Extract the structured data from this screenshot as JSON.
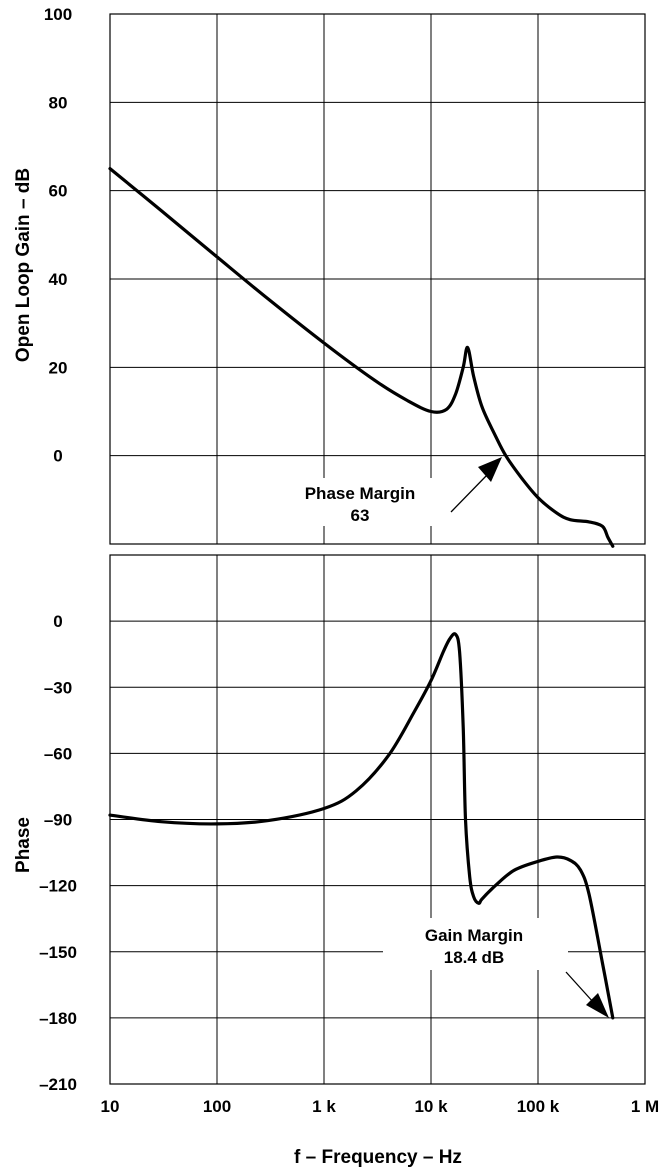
{
  "chart_data": [
    {
      "type": "line",
      "ylabel": "Open Loop Gain – dB",
      "x_scale": "log",
      "xlim": [
        10,
        1000000
      ],
      "ylim": [
        -20,
        100
      ],
      "yticks": [
        100,
        80,
        60,
        40,
        20,
        0
      ],
      "ytick_labels": [
        "100",
        "80",
        "60",
        "40",
        "20",
        "0"
      ],
      "grid": true,
      "series": [
        {
          "x": [
            10,
            30,
            100,
            300,
            1000,
            3000,
            6000,
            10000,
            14000,
            17000,
            20000,
            22000,
            25000,
            30000,
            40000,
            50000,
            70000,
            100000,
            150000,
            200000,
            300000,
            400000,
            450000,
            500000
          ],
          "values": [
            65,
            55.5,
            45,
            35.5,
            25.5,
            17,
            12.5,
            10,
            10.5,
            14,
            20,
            24.5,
            18,
            11,
            4.5,
            0,
            -5,
            -9.5,
            -13,
            -14.5,
            -15,
            -16,
            -18.5,
            -20.5
          ]
        }
      ],
      "annotations": [
        {
          "lines": [
            "Phase Margin",
            "63"
          ],
          "arrow_to": {
            "x": 50000,
            "y": 0
          }
        }
      ]
    },
    {
      "type": "line",
      "xlabel": "f – Frequency – Hz",
      "ylabel": "Phase",
      "x_scale": "log",
      "xlim": [
        10,
        1000000
      ],
      "ylim": [
        -210,
        30
      ],
      "xticks": [
        10,
        100,
        1000,
        10000,
        100000,
        1000000
      ],
      "xtick_labels": [
        "10",
        "100",
        "1 k",
        "10 k",
        "100 k",
        "1 M"
      ],
      "yticks": [
        0,
        -30,
        -60,
        -90,
        -120,
        -150,
        -180,
        -210
      ],
      "ytick_labels": [
        "0",
        "–30",
        "–60",
        "–90",
        "–120",
        "–150",
        "–180",
        "–210"
      ],
      "grid": true,
      "series": [
        {
          "x": [
            10,
            30,
            100,
            300,
            1000,
            2000,
            4000,
            7000,
            10000,
            13000,
            15000,
            17000,
            18500,
            20000,
            21000,
            23000,
            25000,
            28000,
            30000,
            40000,
            60000,
            100000,
            150000,
            200000,
            250000,
            300000,
            400000,
            500000
          ],
          "values": [
            -88,
            -91,
            -92,
            -90.5,
            -85,
            -77,
            -61,
            -41,
            -27,
            -14,
            -8,
            -6,
            -14,
            -48,
            -90,
            -116,
            -125,
            -128,
            -126,
            -120,
            -113,
            -109,
            -107,
            -108.5,
            -113,
            -124,
            -155,
            -180
          ]
        }
      ],
      "annotations": [
        {
          "lines": [
            "Gain Margin",
            "18.4 dB"
          ],
          "arrow_to": {
            "x": 500000,
            "y": -180
          }
        }
      ]
    }
  ]
}
